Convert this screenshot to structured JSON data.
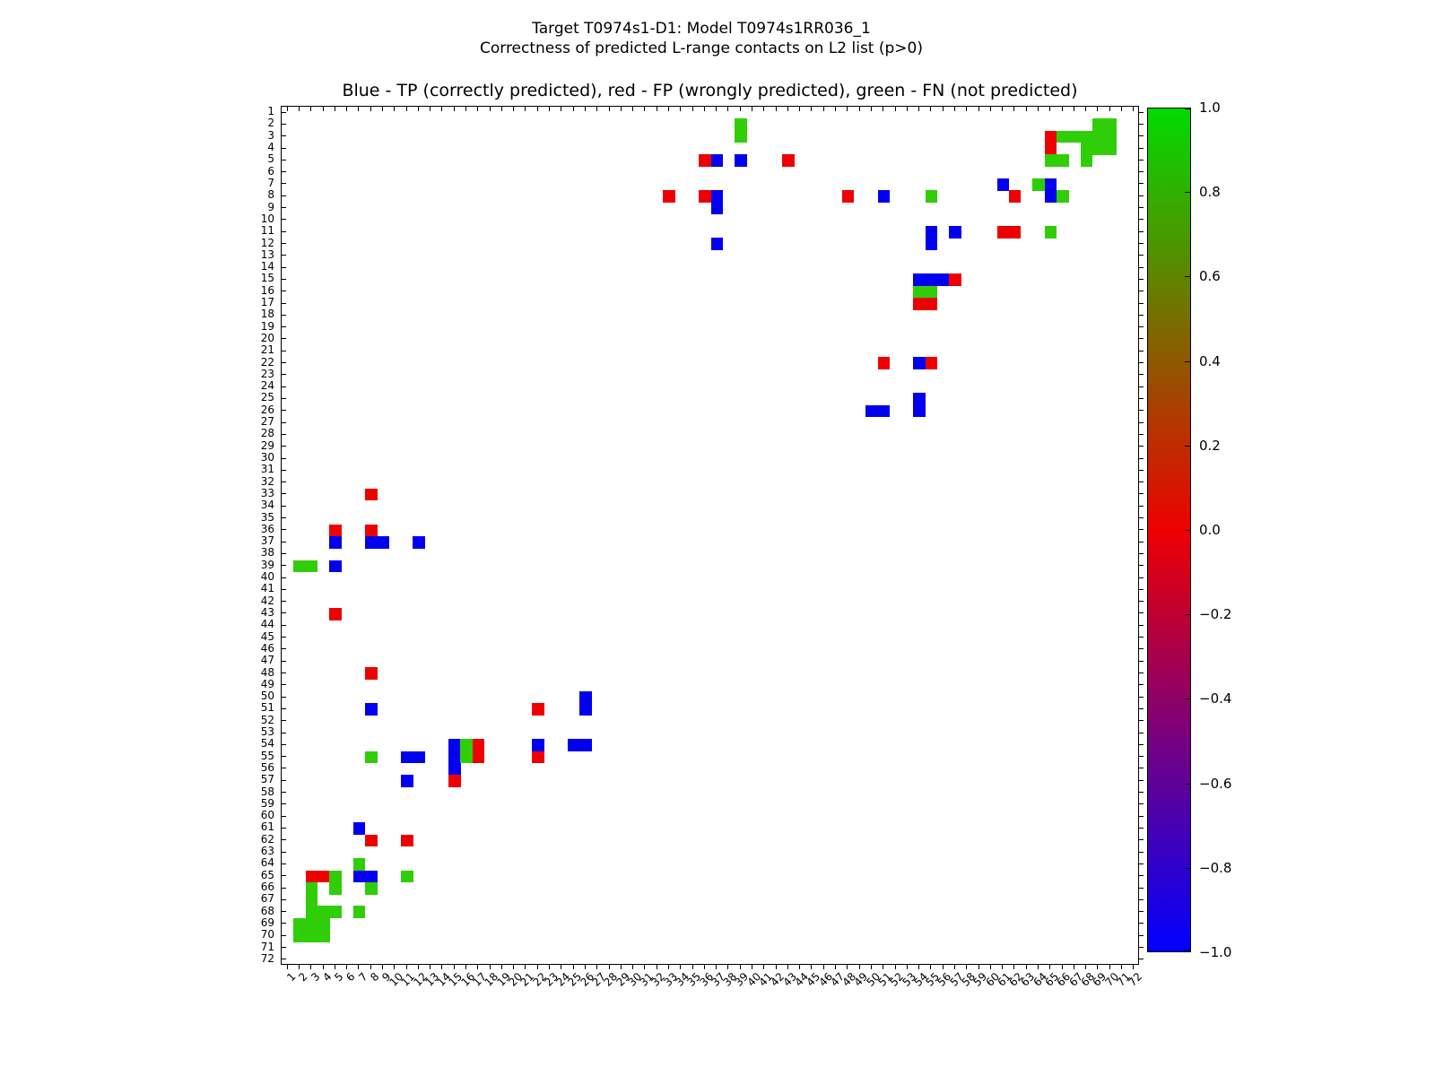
{
  "figure": {
    "title_line1": "Target T0974s1-D1: Model T0974s1RR036_1",
    "title_line2": "Correctness of predicted L-range contacts on L2 list (p>0)",
    "axes_title": "Blue - TP (correctly predicted), red - FP (wrongly predicted), green - FN (not predicted)"
  },
  "chart_data": {
    "type": "heatmap",
    "title": "Blue - TP (correctly predicted), red - FP (wrongly predicted), green - FN (not predicted)",
    "xlabel": "",
    "ylabel": "",
    "x_range": [
      1,
      72
    ],
    "y_range": [
      1,
      72
    ],
    "grid": false,
    "legend_meaning": {
      "blue": "TP (correctly predicted)",
      "red": "FP (wrongly predicted)",
      "green": "FN (not predicted)"
    },
    "cell_colors": {
      "b": "#0000ee",
      "r": "#ee0000",
      "g": "#2fce08"
    },
    "axis_tick_labels": [
      1,
      2,
      3,
      4,
      5,
      6,
      7,
      8,
      9,
      10,
      11,
      12,
      13,
      14,
      15,
      16,
      17,
      18,
      19,
      20,
      21,
      22,
      23,
      24,
      25,
      26,
      27,
      28,
      29,
      30,
      31,
      32,
      33,
      34,
      35,
      36,
      37,
      38,
      39,
      40,
      41,
      42,
      43,
      44,
      45,
      46,
      47,
      48,
      49,
      50,
      51,
      52,
      53,
      54,
      55,
      56,
      57,
      58,
      59,
      60,
      61,
      62,
      63,
      64,
      65,
      66,
      67,
      68,
      69,
      70,
      71,
      72
    ],
    "colorbar": {
      "tick_labels": [
        "1.0",
        "0.8",
        "0.6",
        "0.4",
        "0.2",
        "0.0",
        "−0.2",
        "−0.4",
        "−0.6",
        "−0.8",
        "−1.0"
      ],
      "value_range": [
        -1.0,
        1.0
      ],
      "top_color": "#00dc00",
      "mid_color": "#ee0000",
      "bottom_color": "#0000ff"
    },
    "cells": [
      [
        2,
        39,
        "g"
      ],
      [
        2,
        69,
        "g"
      ],
      [
        2,
        70,
        "g"
      ],
      [
        3,
        39,
        "g"
      ],
      [
        3,
        65,
        "r"
      ],
      [
        3,
        66,
        "g"
      ],
      [
        3,
        67,
        "g"
      ],
      [
        3,
        68,
        "g"
      ],
      [
        3,
        69,
        "g"
      ],
      [
        3,
        70,
        "g"
      ],
      [
        4,
        65,
        "r"
      ],
      [
        4,
        68,
        "g"
      ],
      [
        4,
        69,
        "g"
      ],
      [
        4,
        70,
        "g"
      ],
      [
        5,
        36,
        "r"
      ],
      [
        5,
        37,
        "b"
      ],
      [
        5,
        39,
        "b"
      ],
      [
        5,
        43,
        "r"
      ],
      [
        5,
        65,
        "g"
      ],
      [
        5,
        66,
        "g"
      ],
      [
        5,
        68,
        "g"
      ],
      [
        7,
        61,
        "b"
      ],
      [
        7,
        64,
        "g"
      ],
      [
        7,
        65,
        "b"
      ],
      [
        8,
        33,
        "r"
      ],
      [
        8,
        36,
        "r"
      ],
      [
        8,
        37,
        "b"
      ],
      [
        8,
        48,
        "r"
      ],
      [
        8,
        51,
        "b"
      ],
      [
        8,
        55,
        "g"
      ],
      [
        8,
        62,
        "r"
      ],
      [
        8,
        65,
        "b"
      ],
      [
        8,
        66,
        "g"
      ],
      [
        9,
        37,
        "b"
      ],
      [
        11,
        55,
        "b"
      ],
      [
        11,
        57,
        "b"
      ],
      [
        11,
        61,
        "r"
      ],
      [
        11,
        62,
        "r"
      ],
      [
        11,
        65,
        "g"
      ],
      [
        12,
        37,
        "b"
      ],
      [
        12,
        55,
        "b"
      ],
      [
        15,
        54,
        "b"
      ],
      [
        15,
        55,
        "b"
      ],
      [
        15,
        56,
        "b"
      ],
      [
        15,
        57,
        "r"
      ],
      [
        16,
        54,
        "g"
      ],
      [
        16,
        55,
        "g"
      ],
      [
        17,
        54,
        "r"
      ],
      [
        17,
        55,
        "r"
      ],
      [
        22,
        51,
        "r"
      ],
      [
        22,
        54,
        "b"
      ],
      [
        22,
        55,
        "r"
      ],
      [
        25,
        54,
        "b"
      ],
      [
        26,
        50,
        "b"
      ],
      [
        26,
        51,
        "b"
      ],
      [
        26,
        54,
        "b"
      ],
      [
        33,
        8,
        "r"
      ],
      [
        36,
        5,
        "r"
      ],
      [
        36,
        8,
        "r"
      ],
      [
        37,
        5,
        "b"
      ],
      [
        37,
        8,
        "b"
      ],
      [
        37,
        9,
        "b"
      ],
      [
        37,
        12,
        "b"
      ],
      [
        39,
        2,
        "g"
      ],
      [
        39,
        3,
        "g"
      ],
      [
        39,
        5,
        "b"
      ],
      [
        43,
        5,
        "r"
      ],
      [
        48,
        8,
        "r"
      ],
      [
        50,
        26,
        "b"
      ],
      [
        51,
        8,
        "b"
      ],
      [
        51,
        22,
        "r"
      ],
      [
        51,
        26,
        "b"
      ],
      [
        54,
        15,
        "b"
      ],
      [
        54,
        16,
        "g"
      ],
      [
        54,
        17,
        "r"
      ],
      [
        54,
        22,
        "b"
      ],
      [
        54,
        25,
        "b"
      ],
      [
        54,
        26,
        "b"
      ],
      [
        55,
        8,
        "g"
      ],
      [
        55,
        11,
        "b"
      ],
      [
        55,
        12,
        "b"
      ],
      [
        55,
        15,
        "b"
      ],
      [
        55,
        16,
        "g"
      ],
      [
        55,
        17,
        "r"
      ],
      [
        55,
        22,
        "r"
      ],
      [
        56,
        15,
        "b"
      ],
      [
        57,
        11,
        "b"
      ],
      [
        57,
        15,
        "r"
      ],
      [
        61,
        7,
        "b"
      ],
      [
        62,
        8,
        "r"
      ],
      [
        62,
        11,
        "r"
      ],
      [
        64,
        7,
        "g"
      ],
      [
        65,
        3,
        "r"
      ],
      [
        65,
        4,
        "r"
      ],
      [
        65,
        5,
        "g"
      ],
      [
        65,
        7,
        "b"
      ],
      [
        65,
        8,
        "b"
      ],
      [
        65,
        11,
        "g"
      ],
      [
        66,
        3,
        "g"
      ],
      [
        66,
        5,
        "g"
      ],
      [
        66,
        8,
        "g"
      ],
      [
        67,
        3,
        "g"
      ],
      [
        68,
        3,
        "g"
      ],
      [
        68,
        4,
        "g"
      ],
      [
        68,
        5,
        "g"
      ],
      [
        68,
        7,
        "g"
      ],
      [
        69,
        2,
        "g"
      ],
      [
        69,
        3,
        "g"
      ],
      [
        69,
        4,
        "g"
      ],
      [
        70,
        2,
        "g"
      ],
      [
        70,
        3,
        "g"
      ],
      [
        70,
        4,
        "g"
      ]
    ]
  }
}
